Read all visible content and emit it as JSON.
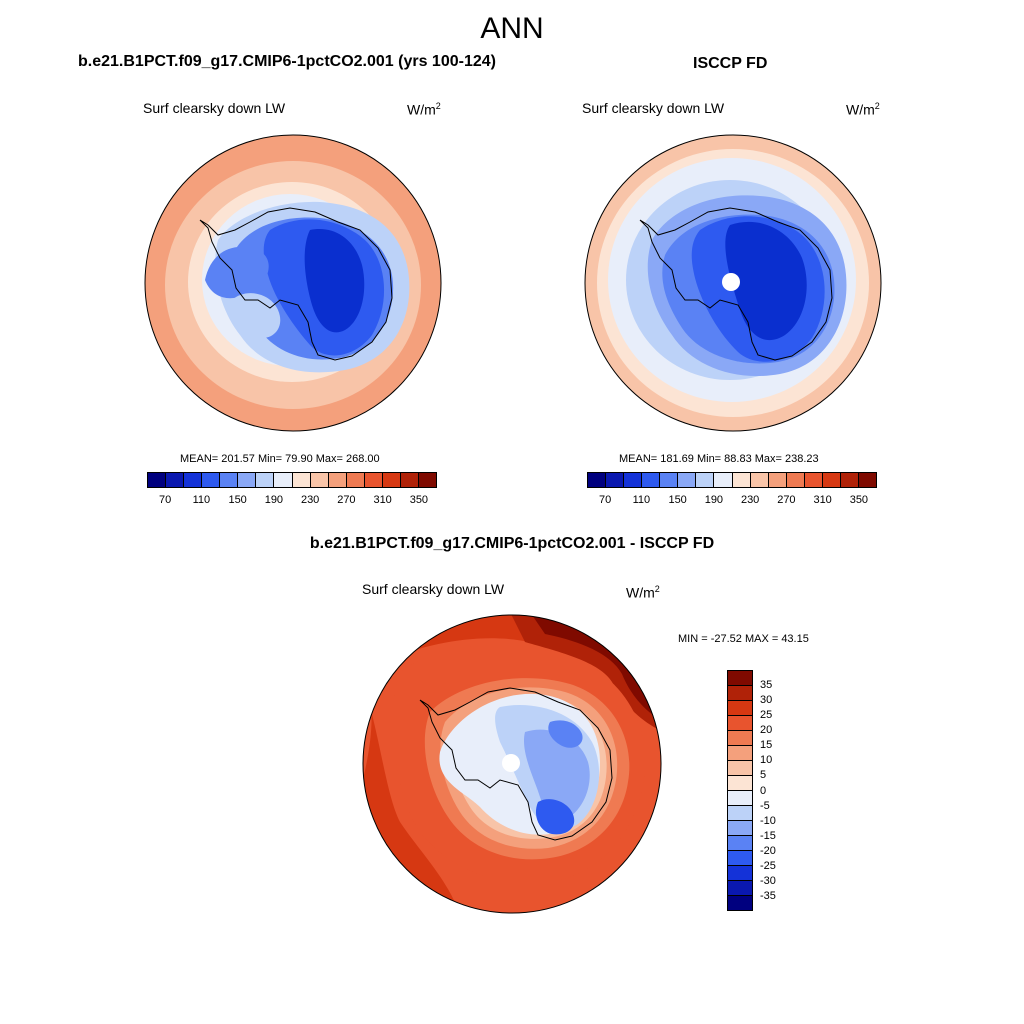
{
  "figure": {
    "season": "ANN",
    "variable": "Surf clearsky down LW",
    "units": "W/m",
    "units_exponent": "2"
  },
  "panels": {
    "model": {
      "title": "b.e21.B1PCT.f09_g17.CMIP6-1pctCO2.001 (yrs 100-124)",
      "stats": "MEAN= 201.57  Min=  79.90  Max= 268.00"
    },
    "obs": {
      "title": "ISCCP FD",
      "stats": "MEAN= 181.69  Min=  88.83  Max= 238.23"
    },
    "diff": {
      "title": "b.e21.B1PCT.f09_g17.CMIP6-1pctCO2.001 - ISCCP FD",
      "stats": "MIN = -27.52 MAX =  43.15"
    }
  },
  "colorbar_abs": {
    "colors": [
      "#00007f",
      "#0a18b0",
      "#1432d8",
      "#2e5af0",
      "#5a82f4",
      "#8aa8f6",
      "#bcd2f8",
      "#e8eefa",
      "#fce4d4",
      "#f8c4a8",
      "#f4a07c",
      "#ef7a52",
      "#e8542e",
      "#d63812",
      "#b02208",
      "#7f0a00"
    ],
    "tick_labels": [
      "70",
      "110",
      "150",
      "190",
      "230",
      "270",
      "310",
      "350"
    ]
  },
  "colorbar_diff": {
    "colors_top_to_bottom": [
      "#7f0a00",
      "#b02208",
      "#d63812",
      "#e8542e",
      "#ef7a52",
      "#f4a07c",
      "#f8c4a8",
      "#fce4d4",
      "#e8eefa",
      "#bcd2f8",
      "#8aa8f6",
      "#5a82f4",
      "#2e5af0",
      "#1432d8",
      "#0a18b0",
      "#00007f"
    ],
    "tick_labels": [
      "35",
      "30",
      "25",
      "20",
      "15",
      "10",
      "5",
      "0",
      "-5",
      "-10",
      "-15",
      "-20",
      "-25",
      "-30",
      "-35"
    ]
  },
  "map_colors": {
    "deep_blue": "#0a2fcf",
    "blue": "#2e5af0",
    "mid_blue": "#5a82f4",
    "light_blue": "#8aa8f6",
    "pale_blue": "#bcd2f8",
    "very_pale_blue": "#e8eefa",
    "cream": "#fce4d4",
    "peach": "#f8c4a8",
    "salmon": "#f4a07c",
    "orange": "#ef7a52",
    "red_orange": "#e8542e",
    "red": "#d63812",
    "dark_red": "#b02208",
    "maroon": "#7f0a00"
  }
}
